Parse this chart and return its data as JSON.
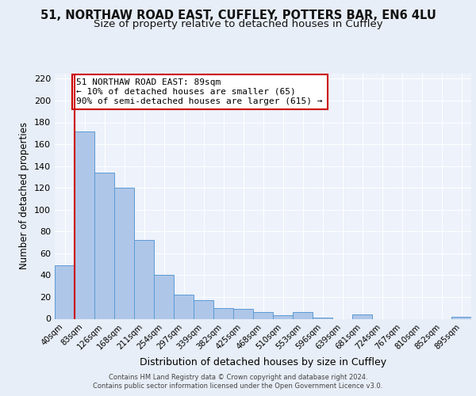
{
  "title": "51, NORTHAW ROAD EAST, CUFFLEY, POTTERS BAR, EN6 4LU",
  "subtitle": "Size of property relative to detached houses in Cuffley",
  "xlabel": "Distribution of detached houses by size in Cuffley",
  "ylabel": "Number of detached properties",
  "bar_labels": [
    "40sqm",
    "83sqm",
    "126sqm",
    "168sqm",
    "211sqm",
    "254sqm",
    "297sqm",
    "339sqm",
    "382sqm",
    "425sqm",
    "468sqm",
    "510sqm",
    "553sqm",
    "596sqm",
    "639sqm",
    "681sqm",
    "724sqm",
    "767sqm",
    "810sqm",
    "852sqm",
    "895sqm"
  ],
  "bar_values": [
    49,
    172,
    134,
    120,
    72,
    40,
    22,
    17,
    10,
    9,
    6,
    3,
    6,
    1,
    0,
    4,
    0,
    0,
    0,
    0,
    2
  ],
  "bar_color": "#aec6e8",
  "bar_edge_color": "#5b9bd5",
  "vline_x": 0.5,
  "vline_color": "#cc0000",
  "annotation_text": "51 NORTHAW ROAD EAST: 89sqm\n← 10% of detached houses are smaller (65)\n90% of semi-detached houses are larger (615) →",
  "ylim": [
    0,
    225
  ],
  "yticks": [
    0,
    20,
    40,
    60,
    80,
    100,
    120,
    140,
    160,
    180,
    200,
    220
  ],
  "background_color": "#e8eef7",
  "plot_bg_color": "#edf2fb",
  "grid_color": "#ffffff",
  "title_fontsize": 10.5,
  "subtitle_fontsize": 9.5,
  "xlabel_fontsize": 9,
  "ylabel_fontsize": 8.5,
  "footer_line1": "Contains HM Land Registry data © Crown copyright and database right 2024.",
  "footer_line2": "Contains public sector information licensed under the Open Government Licence v3.0."
}
